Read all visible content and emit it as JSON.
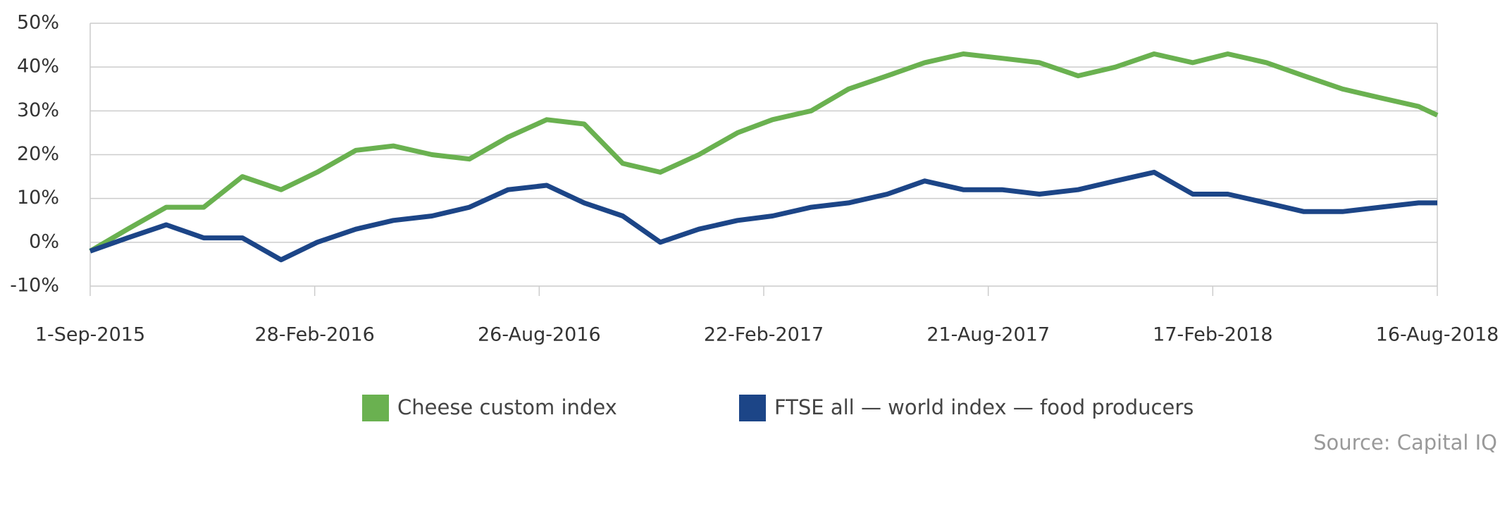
{
  "chart_data": {
    "type": "line",
    "x": [
      "2015-09-01",
      "2015-10-01",
      "2015-11-01",
      "2015-12-01",
      "2016-01-01",
      "2016-02-01",
      "2016-03-01",
      "2016-04-01",
      "2016-05-01",
      "2016-06-01",
      "2016-07-01",
      "2016-08-01",
      "2016-09-01",
      "2016-10-01",
      "2016-11-01",
      "2016-12-01",
      "2017-01-01",
      "2017-02-01",
      "2017-03-01",
      "2017-04-01",
      "2017-05-01",
      "2017-06-01",
      "2017-07-01",
      "2017-08-01",
      "2017-09-01",
      "2017-10-01",
      "2017-11-01",
      "2017-12-01",
      "2018-01-01",
      "2018-02-01",
      "2018-03-01",
      "2018-04-01",
      "2018-05-01",
      "2018-06-01",
      "2018-07-01",
      "2018-08-01",
      "2018-08-16"
    ],
    "series": [
      {
        "name": "Cheese custom index",
        "color": "#6ab150",
        "values": [
          -2,
          3,
          8,
          8,
          15,
          12,
          16,
          21,
          22,
          20,
          19,
          24,
          28,
          27,
          18,
          16,
          20,
          25,
          28,
          30,
          35,
          38,
          41,
          43,
          42,
          41,
          38,
          40,
          43,
          41,
          43,
          41,
          38,
          35,
          33,
          31,
          29
        ]
      },
      {
        "name": "FTSE all — world index — food producers",
        "color": "#1c4587",
        "values": [
          -2,
          1,
          4,
          1,
          1,
          -4,
          0,
          3,
          5,
          6,
          8,
          12,
          13,
          9,
          6,
          0,
          3,
          5,
          6,
          8,
          9,
          11,
          14,
          12,
          12,
          11,
          12,
          14,
          16,
          11,
          11,
          9,
          7,
          7,
          8,
          9,
          9
        ]
      }
    ],
    "xlim": [
      "2015-09-01",
      "2018-08-16"
    ],
    "xticks": [
      {
        "value": "2015-09-01",
        "label": "1-Sep-2015"
      },
      {
        "value": "2016-02-28",
        "label": "28-Feb-2016"
      },
      {
        "value": "2016-08-26",
        "label": "26-Aug-2016"
      },
      {
        "value": "2017-02-22",
        "label": "22-Feb-2017"
      },
      {
        "value": "2017-08-21",
        "label": "21-Aug-2017"
      },
      {
        "value": "2018-02-17",
        "label": "17-Feb-2018"
      },
      {
        "value": "2018-08-16",
        "label": "16-Aug-2018"
      }
    ],
    "ylim": [
      -10,
      50
    ],
    "yticks": [
      {
        "value": -10,
        "label": "-10%"
      },
      {
        "value": 0,
        "label": "0%"
      },
      {
        "value": 10,
        "label": "10%"
      },
      {
        "value": 20,
        "label": "20%"
      },
      {
        "value": 30,
        "label": "30%"
      },
      {
        "value": 40,
        "label": "40%"
      },
      {
        "value": 50,
        "label": "50%"
      }
    ],
    "grid": true,
    "source": "Source: Capital IQ"
  }
}
